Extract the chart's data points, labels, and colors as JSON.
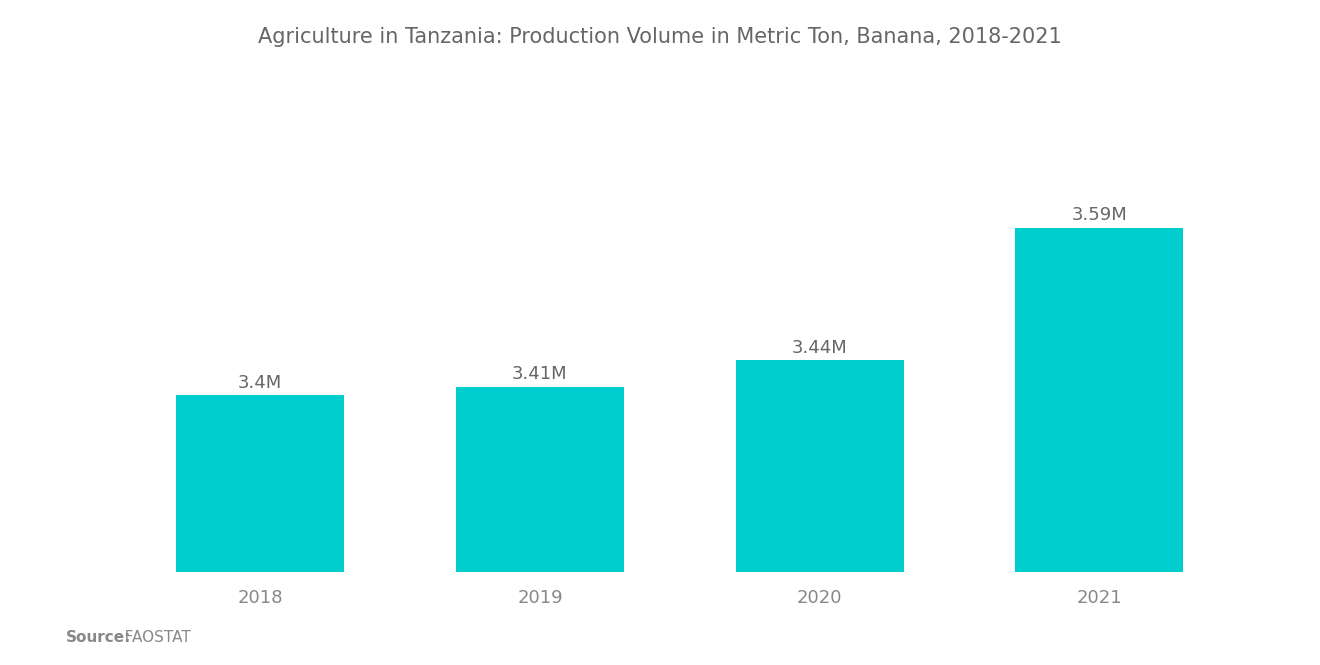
{
  "title": "Agriculture in Tanzania: Production Volume in Metric Ton, Banana, 2018-2021",
  "categories": [
    "2018",
    "2019",
    "2020",
    "2021"
  ],
  "values": [
    3400000,
    3410000,
    3440000,
    3590000
  ],
  "labels": [
    "3.4M",
    "3.41M",
    "3.44M",
    "3.59M"
  ],
  "bar_color": "#00CECE",
  "background_color": "#ffffff",
  "title_color": "#666666",
  "label_color": "#666666",
  "tick_color": "#888888",
  "source_label_bold": "Source:",
  "source_label_normal": "   FAOSTAT",
  "ylim": [
    3200000,
    3750000
  ],
  "bar_width": 0.6,
  "title_fontsize": 15,
  "label_fontsize": 13,
  "tick_fontsize": 13,
  "source_fontsize": 11
}
